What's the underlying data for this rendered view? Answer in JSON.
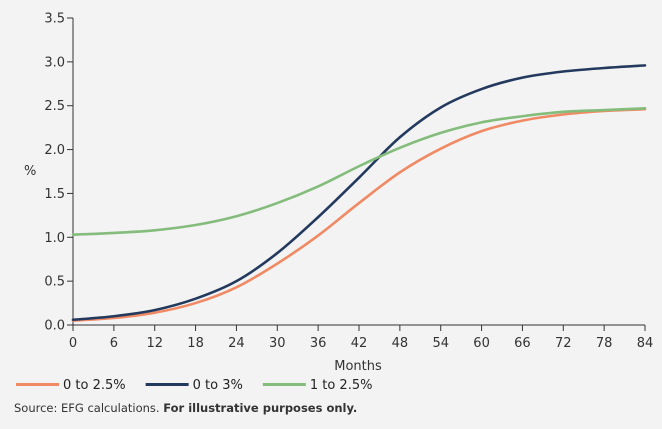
{
  "chart_data": {
    "type": "line",
    "title": "",
    "xlabel": "Months",
    "ylabel": "%",
    "xlim": [
      0,
      84
    ],
    "ylim": [
      0,
      3.5
    ],
    "x_ticks": [
      0,
      6,
      12,
      18,
      24,
      30,
      36,
      42,
      48,
      54,
      60,
      66,
      72,
      78,
      84
    ],
    "x_tick_labels": [
      "0",
      "6",
      "12",
      "18",
      "24",
      "30",
      "36",
      "42",
      "48",
      "54",
      "60",
      "66",
      "72",
      "78",
      "84"
    ],
    "y_ticks": [
      0,
      0.5,
      1,
      1.5,
      2,
      2.5,
      3,
      3.5
    ],
    "y_tick_labels": [
      "0.0",
      "0.5",
      "1.0",
      "1.5",
      "2.0",
      "2.5",
      "3.0",
      "3.5"
    ],
    "grid": false,
    "legend_position": "bottom-left",
    "x": [
      0,
      6,
      12,
      18,
      24,
      30,
      36,
      42,
      48,
      54,
      60,
      66,
      72,
      78,
      84
    ],
    "series": [
      {
        "name": "0 to 2.5%",
        "color": "#f08a64",
        "values": [
          0.05,
          0.08,
          0.14,
          0.25,
          0.43,
          0.7,
          1.02,
          1.39,
          1.74,
          2.01,
          2.21,
          2.33,
          2.4,
          2.44,
          2.46
        ]
      },
      {
        "name": "0 to 3%",
        "color": "#233a5e",
        "values": [
          0.06,
          0.1,
          0.17,
          0.3,
          0.5,
          0.82,
          1.23,
          1.68,
          2.14,
          2.48,
          2.69,
          2.82,
          2.89,
          2.93,
          2.96
        ]
      },
      {
        "name": "1 to 2.5%",
        "color": "#84bc7c",
        "values": [
          1.03,
          1.05,
          1.08,
          1.14,
          1.24,
          1.39,
          1.58,
          1.81,
          2.02,
          2.19,
          2.31,
          2.38,
          2.43,
          2.45,
          2.47
        ]
      }
    ]
  },
  "source": {
    "prefix": "Source: EFG calculations. ",
    "note": "For illustrative purposes only."
  }
}
